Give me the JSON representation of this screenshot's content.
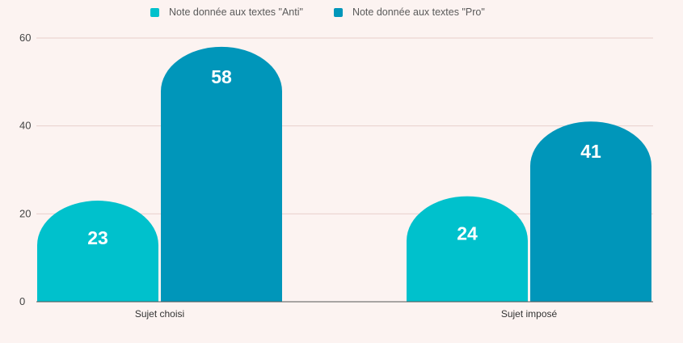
{
  "chart_data": {
    "type": "bar",
    "title": "",
    "xlabel": "",
    "ylabel": "",
    "categories": [
      "Sujet choisi",
      "Sujet imposé"
    ],
    "series": [
      {
        "name": "Note donnée aux textes \"Anti\"",
        "color": "#00c1cc",
        "values": [
          23,
          24
        ]
      },
      {
        "name": "Note donnée aux textes \"Pro\"",
        "color": "#0096ba",
        "values": [
          58,
          41
        ]
      }
    ],
    "ylim": [
      0,
      60
    ],
    "yticks": [
      0,
      20,
      40,
      60
    ],
    "legend_position": "top-center",
    "grid": true
  },
  "colors": {
    "background": "#fcf3f1",
    "gridline": "#e8cfcc",
    "baseline": "#555555"
  }
}
